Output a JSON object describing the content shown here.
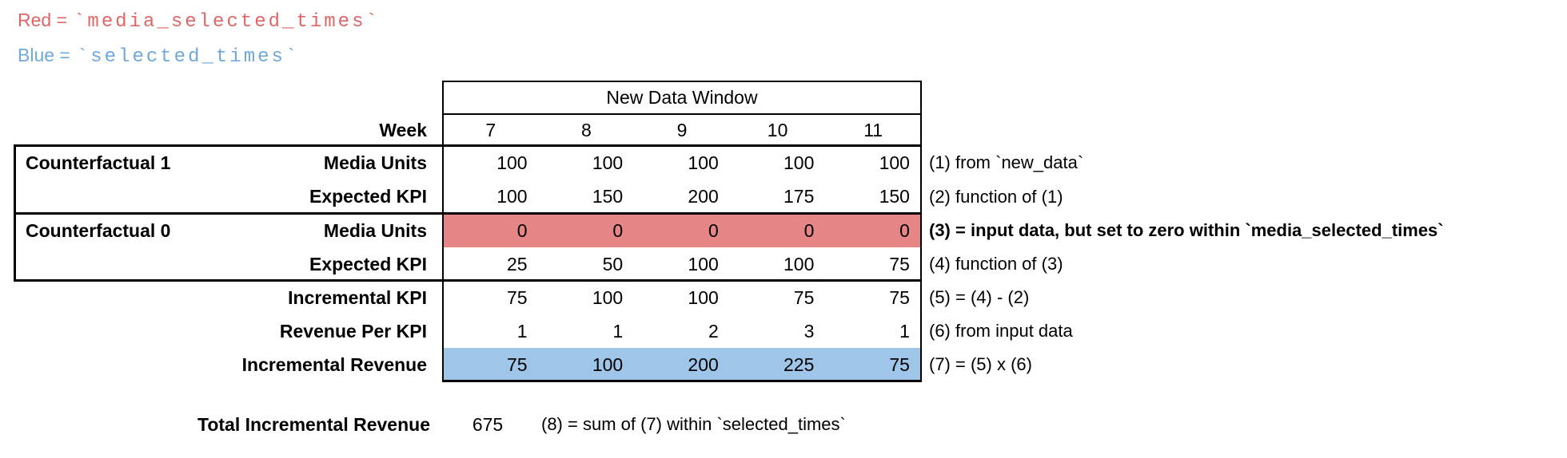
{
  "legend": {
    "red": {
      "prefix": "Red =",
      "code": "`media_selected_times`",
      "color": "#e06666"
    },
    "blue": {
      "prefix": "Blue =",
      "code": "`selected_times`",
      "color": "#6fa8dc"
    }
  },
  "table": {
    "header": "New Data Window",
    "week_label": "Week",
    "weeks": [
      "7",
      "8",
      "9",
      "10",
      "11"
    ],
    "rows": [
      {
        "group": "Counterfactual 1",
        "metric": "Media Units",
        "values": [
          "100",
          "100",
          "100",
          "100",
          "100"
        ],
        "annotation": "(1) from `new_data`"
      },
      {
        "group": "",
        "metric": "Expected KPI",
        "values": [
          "100",
          "150",
          "200",
          "175",
          "150"
        ],
        "annotation": "(2) function of (1)"
      },
      {
        "group": "Counterfactual 0",
        "metric": "Media Units",
        "values": [
          "0",
          "0",
          "0",
          "0",
          "0"
        ],
        "annotation": "(3) = input data, but set to zero within `media_selected_times`",
        "highlight": "red"
      },
      {
        "group": "",
        "metric": "Expected KPI",
        "values": [
          "25",
          "50",
          "100",
          "100",
          "75"
        ],
        "annotation": "(4) function of (3)"
      },
      {
        "group": "",
        "metric": "Incremental KPI",
        "values": [
          "75",
          "100",
          "100",
          "75",
          "75"
        ],
        "annotation": "(5) = (4) - (2)"
      },
      {
        "group": "",
        "metric": "Revenue Per KPI",
        "values": [
          "1",
          "1",
          "2",
          "3",
          "1"
        ],
        "annotation": "(6) from input data"
      },
      {
        "group": "",
        "metric": "Incremental Revenue",
        "values": [
          "75",
          "100",
          "200",
          "225",
          "75"
        ],
        "annotation": "(7) = (5) x (6)",
        "highlight": "blue"
      }
    ],
    "colors": {
      "red_fill": "#e68585",
      "blue_fill": "#9fc5e8",
      "border": "#000000"
    }
  },
  "total": {
    "label": "Total Incremental Revenue",
    "value": "675",
    "annotation": "(8) = sum of (7) within `selected_times`"
  }
}
